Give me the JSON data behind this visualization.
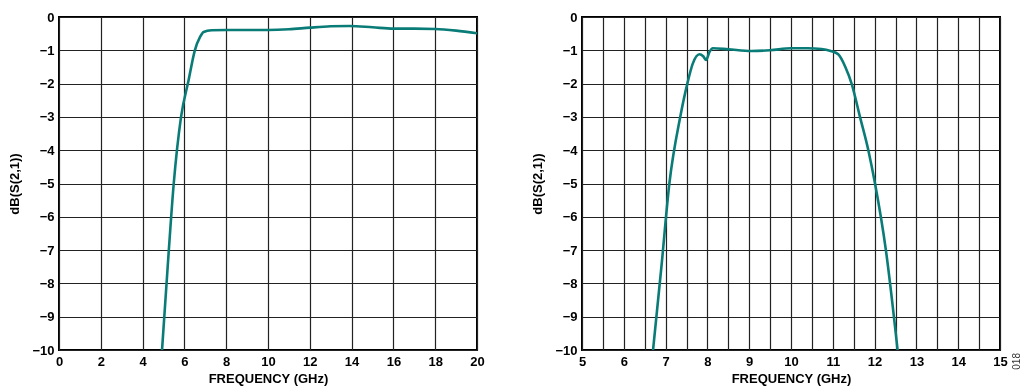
{
  "chart_data": [
    {
      "type": "line",
      "xlabel": "FREQUENCY (GHz)",
      "ylabel": "dB(S(2,1))",
      "xlim": [
        0,
        20
      ],
      "ylim": [
        -10,
        0
      ],
      "xticks": [
        0,
        2,
        4,
        6,
        8,
        10,
        12,
        14,
        16,
        18,
        20
      ],
      "yticks": [
        -10,
        -9,
        -8,
        -7,
        -6,
        -5,
        -4,
        -3,
        -2,
        -1,
        0
      ],
      "grid": true,
      "line_style": "solid",
      "series": [
        {
          "color": "#0a7c78",
          "x": [
            4.93,
            5.2,
            5.49,
            5.84,
            6.2,
            6.5,
            6.75,
            6.92,
            7.3,
            8,
            9,
            10,
            11,
            12,
            13,
            13.9,
            15,
            16,
            17,
            18,
            19,
            20
          ],
          "values": [
            -10,
            -7.5,
            -5,
            -3,
            -1.9,
            -1,
            -0.6,
            -0.45,
            -0.4,
            -0.39,
            -0.39,
            -0.39,
            -0.37,
            -0.32,
            -0.28,
            -0.27,
            -0.31,
            -0.35,
            -0.35,
            -0.36,
            -0.41,
            -0.49
          ]
        }
      ]
    },
    {
      "type": "line",
      "xlabel": "FREQUENCY (GHz)",
      "ylabel": "dB(S(2,1))",
      "xlim": [
        5,
        15
      ],
      "ylim": [
        -10,
        0
      ],
      "xticks": [
        5,
        {
          "value": 5.5,
          "label": null
        },
        6,
        {
          "value": 6.5,
          "label": null
        },
        7,
        {
          "value": 7.5,
          "label": null
        },
        8,
        {
          "value": 8.5,
          "label": null
        },
        9,
        {
          "value": 9.5,
          "label": null
        },
        10,
        {
          "value": 10.5,
          "label": null
        },
        11,
        {
          "value": 11.5,
          "label": null
        },
        12,
        {
          "value": 12.5,
          "label": null
        },
        13,
        {
          "value": 13.5,
          "label": null
        },
        14,
        {
          "value": 14.5,
          "label": null
        },
        15
      ],
      "yticks": [
        -10,
        -9,
        -8,
        -7,
        -6,
        -5,
        -4,
        -3,
        -2,
        -1,
        0
      ],
      "grid": true,
      "line_style": "solid",
      "annotations": [
        "018"
      ],
      "series": [
        {
          "color": "#0a7c78",
          "x": [
            6.7,
            6.9,
            7.09,
            7.35,
            7.52,
            7.65,
            7.81,
            7.9,
            7.97,
            8.05,
            8.13,
            8.5,
            9.05,
            9.5,
            10,
            10.4,
            10.73,
            10.95,
            11.13,
            11.3,
            11.45,
            11.65,
            11.85,
            12.01,
            12.27,
            12.55
          ],
          "values": [
            -10,
            -7.5,
            -5,
            -3,
            -2,
            -1.4,
            -1.12,
            -1.18,
            -1.29,
            -1.05,
            -0.94,
            -0.97,
            -1.02,
            -1,
            -0.94,
            -0.94,
            -0.96,
            -1.02,
            -1.12,
            -1.5,
            -2,
            -3,
            -4,
            -5,
            -7,
            -10
          ]
        }
      ]
    }
  ]
}
